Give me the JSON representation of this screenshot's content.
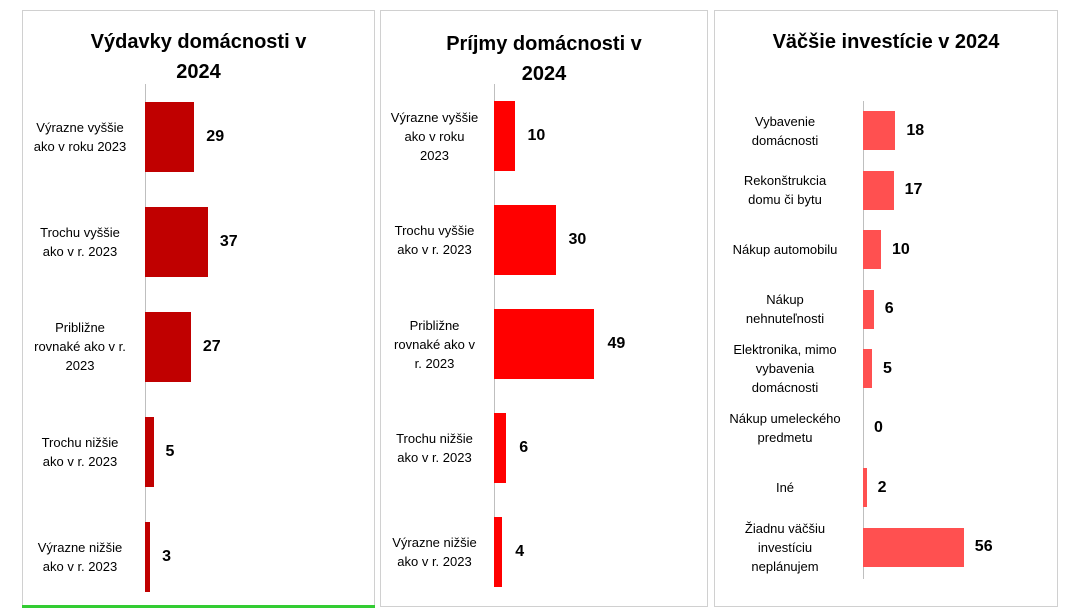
{
  "chart_data": [
    {
      "type": "bar",
      "orientation": "horizontal",
      "title": "Výdavky domácnosti v\n2024",
      "categories": [
        "Výrazne vyššie\nako v roku 2023",
        "Trochu vyššie\nako v r. 2023",
        "Približne\nrovnaké ako v r.\n2023",
        "Trochu nižšie\nako v r. 2023",
        "Výrazne nižšie\nako v r. 2023"
      ],
      "values": [
        29,
        37,
        27,
        5,
        3
      ],
      "value_labels": [
        "29",
        "37",
        "27",
        "5",
        "3"
      ],
      "color": "#c00000",
      "grid": false,
      "legend": "none"
    },
    {
      "type": "bar",
      "orientation": "horizontal",
      "title": "Príjmy domácnosti v\n2024",
      "categories": [
        "Výrazne vyššie\nako v roku\n2023",
        "Trochu vyššie\nako v r. 2023",
        "Približne\nrovnaké ako v\nr. 2023",
        "Trochu nižšie\nako v r. 2023",
        "Výrazne nižšie\nako v r. 2023"
      ],
      "values": [
        10,
        30,
        49,
        6,
        4
      ],
      "value_labels": [
        "10",
        "30",
        "49",
        "6",
        "4"
      ],
      "color": "#ff0000",
      "grid": false,
      "legend": "none"
    },
    {
      "type": "bar",
      "orientation": "horizontal",
      "title": "Väčšie investície v 2024",
      "categories": [
        "Vybavenie\ndomácnosti",
        "Rekonštrukcia\ndomu či bytu",
        "Nákup automobilu",
        "Nákup\nnehnuteľnosti",
        "Elektronika, mimo\nvybavenia\ndomácnosti",
        "Nákup umeleckého\npredmetu",
        "Iné",
        "Žiadnu väčšiu\ninvestíciu\nneplánujem"
      ],
      "values": [
        18,
        17,
        10,
        6,
        5,
        0,
        2,
        56
      ],
      "value_labels": [
        "18",
        "17",
        "10",
        "6",
        "5",
        "0",
        "2",
        "56"
      ],
      "color": "#ff5050",
      "grid": false,
      "legend": "none"
    }
  ]
}
